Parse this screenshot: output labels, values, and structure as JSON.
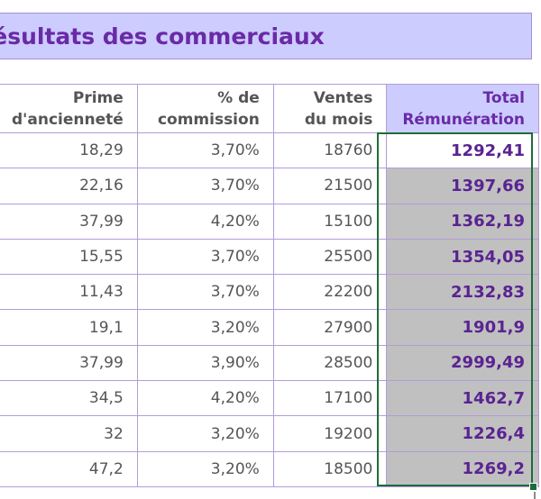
{
  "sheet": {
    "title": "Résultats des commerciaux",
    "headers": {
      "prime": [
        "Prime",
        "d'ancienneté"
      ],
      "commission": [
        "% de",
        "commission"
      ],
      "ventes": [
        "Ventes",
        "du mois"
      ],
      "total": [
        "Total",
        "Rémunération"
      ]
    },
    "rows": [
      {
        "prime": "18,29",
        "commission": "3,70%",
        "ventes": "18760",
        "total": "1292,41"
      },
      {
        "prime": "22,16",
        "commission": "3,70%",
        "ventes": "21500",
        "total": "1397,66"
      },
      {
        "prime": "37,99",
        "commission": "4,20%",
        "ventes": "15100",
        "total": "1362,19"
      },
      {
        "prime": "15,55",
        "commission": "3,70%",
        "ventes": "25500",
        "total": "1354,05"
      },
      {
        "prime": "11,43",
        "commission": "3,70%",
        "ventes": "22200",
        "total": "2132,83"
      },
      {
        "prime": "19,1",
        "commission": "3,20%",
        "ventes": "27900",
        "total": "1901,9"
      },
      {
        "prime": "37,99",
        "commission": "3,90%",
        "ventes": "28500",
        "total": "2999,49"
      },
      {
        "prime": "34,5",
        "commission": "4,20%",
        "ventes": "17100",
        "total": "1462,7"
      },
      {
        "prime": "32",
        "commission": "3,20%",
        "ventes": "19200",
        "total": "1226,4"
      },
      {
        "prime": "47,2",
        "commission": "3,20%",
        "ventes": "18500",
        "total": "1269,2"
      }
    ]
  },
  "colors": {
    "title_bg": "#ccccff",
    "title_text": "#6a2aa6",
    "total_text": "#5a2391",
    "grid_border": "#b39cd8",
    "selected_fill": "#c0c0c0",
    "selection_border": "#1e6b3a"
  }
}
